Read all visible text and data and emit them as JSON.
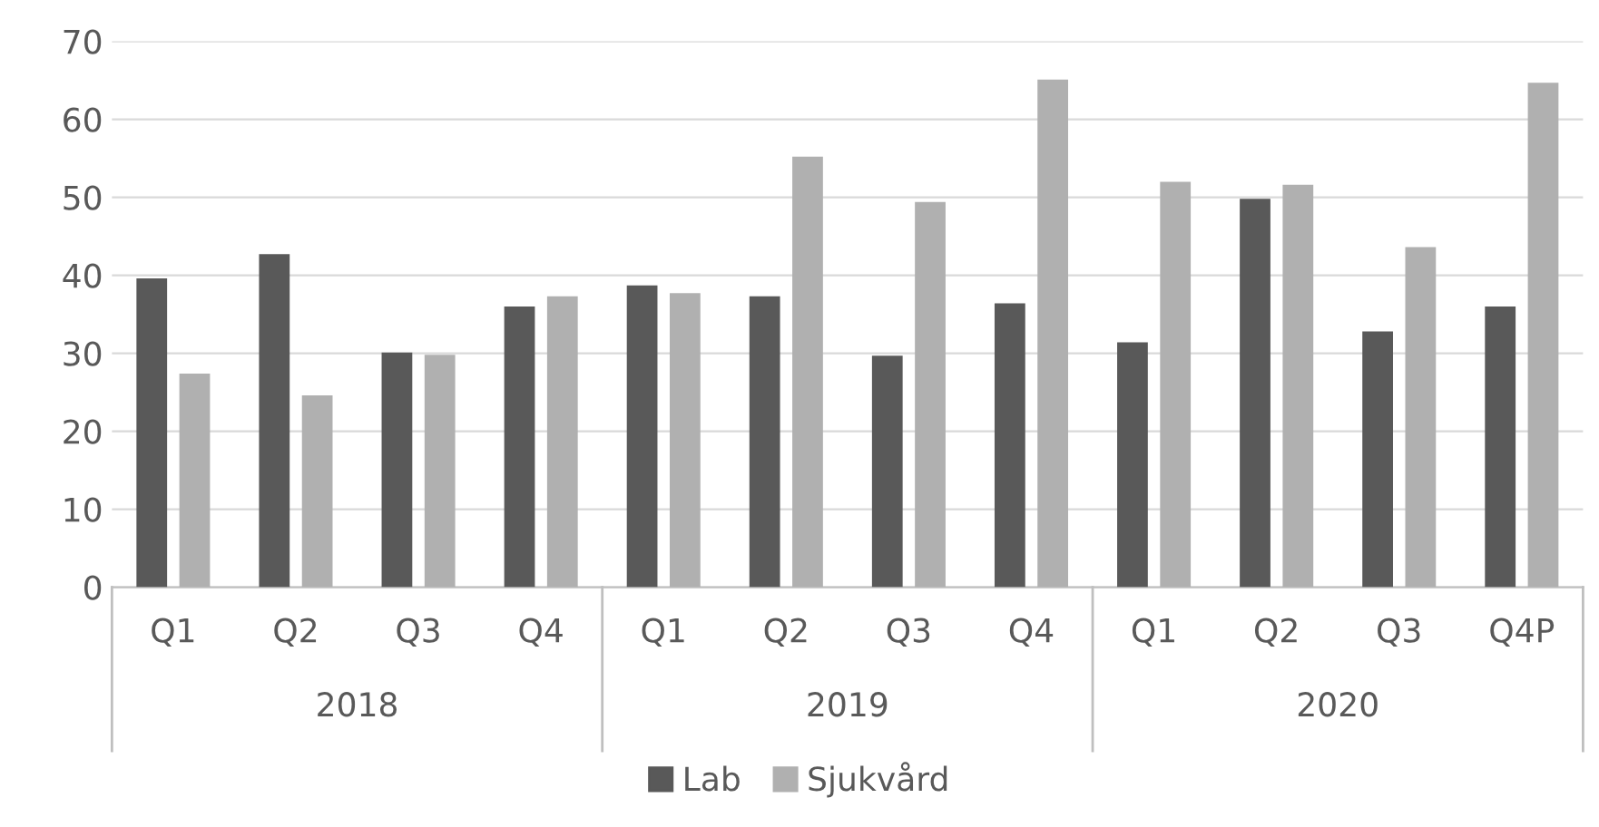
{
  "chart_data": {
    "type": "bar",
    "categories": [
      "Q1",
      "Q2",
      "Q3",
      "Q4",
      "Q1",
      "Q2",
      "Q3",
      "Q4",
      "Q1",
      "Q2",
      "Q3",
      "Q4P"
    ],
    "series": [
      {
        "name": "Lab",
        "color": "#595959",
        "values": [
          39.6,
          42.7,
          30.1,
          36.0,
          38.7,
          37.3,
          29.7,
          36.4,
          31.4,
          49.8,
          32.8,
          36.0
        ]
      },
      {
        "name": "Sjukvård",
        "color": "#b0b0b0",
        "values": [
          27.4,
          24.6,
          29.8,
          37.3,
          37.7,
          55.2,
          49.4,
          65.1,
          52.0,
          51.6,
          43.6,
          64.7
        ]
      }
    ],
    "annotations": [
      "2018",
      "2019",
      "2020"
    ],
    "ylim": [
      0,
      70
    ],
    "yticks": [
      0,
      10,
      20,
      30,
      40,
      50,
      60,
      70
    ],
    "grid": "y",
    "legend": "bottom"
  }
}
